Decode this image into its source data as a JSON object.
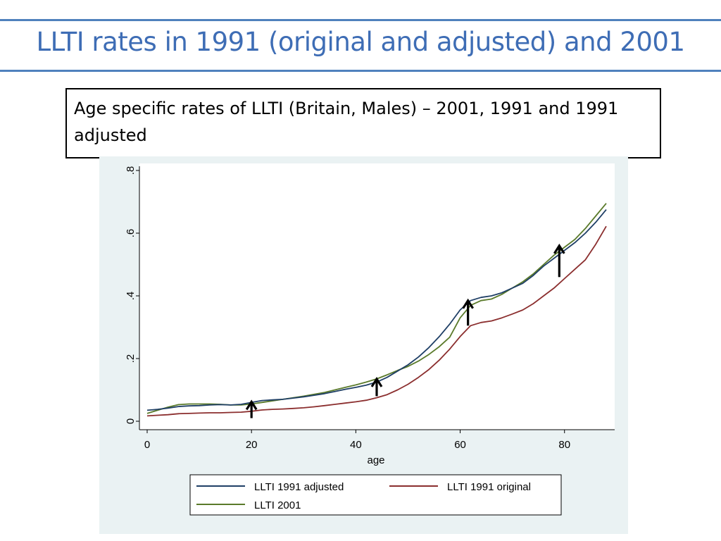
{
  "slide": {
    "title": "LLTI rates in 1991 (original and adjusted) and 2001",
    "caption": "Age specific rates of LLTI (Britain, Males) – 2001, 1991 and 1991 adjusted"
  },
  "colors": {
    "accent": "#4F81BD",
    "title": "#3E6DB5",
    "panel_bg": "#EAF2F3",
    "adjusted": "#1F3F66",
    "original": "#8B2E2E",
    "y2001": "#5A7A2A"
  },
  "chart_data": {
    "type": "line",
    "xlabel": "age",
    "ylabel": "",
    "xlim": [
      0,
      90
    ],
    "ylim": [
      0,
      0.8
    ],
    "xticks": [
      0,
      20,
      40,
      60,
      80
    ],
    "xtick_labels": [
      "0",
      "20",
      "40",
      "60",
      "80"
    ],
    "yticks": [
      0,
      0.2,
      0.4,
      0.6,
      0.8
    ],
    "ytick_labels": [
      "0",
      ".2",
      ".4",
      ".6",
      ".8"
    ],
    "grid": false,
    "legend_position": "bottom",
    "x": [
      0,
      2,
      4,
      6,
      8,
      10,
      12,
      14,
      16,
      18,
      20,
      22,
      24,
      26,
      28,
      30,
      32,
      34,
      36,
      38,
      40,
      42,
      44,
      46,
      48,
      50,
      52,
      54,
      56,
      58,
      60,
      62,
      64,
      66,
      68,
      70,
      72,
      74,
      76,
      78,
      80,
      82,
      84,
      86,
      88
    ],
    "series": [
      {
        "name": "LLTI 1991 adjusted",
        "color": "#1F3F66",
        "values": [
          0.035,
          0.038,
          0.042,
          0.047,
          0.049,
          0.05,
          0.052,
          0.053,
          0.052,
          0.054,
          0.06,
          0.066,
          0.068,
          0.07,
          0.074,
          0.078,
          0.083,
          0.088,
          0.095,
          0.102,
          0.108,
          0.115,
          0.125,
          0.14,
          0.16,
          0.18,
          0.205,
          0.235,
          0.27,
          0.31,
          0.355,
          0.385,
          0.395,
          0.4,
          0.41,
          0.425,
          0.44,
          0.465,
          0.495,
          0.52,
          0.545,
          0.57,
          0.6,
          0.635,
          0.675
        ]
      },
      {
        "name": "LLTI 1991 original",
        "color": "#8B2E2E",
        "values": [
          0.017,
          0.019,
          0.021,
          0.024,
          0.025,
          0.026,
          0.027,
          0.027,
          0.028,
          0.029,
          0.032,
          0.036,
          0.038,
          0.039,
          0.041,
          0.043,
          0.046,
          0.05,
          0.054,
          0.058,
          0.062,
          0.067,
          0.075,
          0.085,
          0.1,
          0.118,
          0.14,
          0.165,
          0.195,
          0.23,
          0.27,
          0.305,
          0.315,
          0.32,
          0.33,
          0.342,
          0.355,
          0.375,
          0.4,
          0.425,
          0.455,
          0.485,
          0.515,
          0.565,
          0.622
        ]
      },
      {
        "name": "LLTI 2001",
        "color": "#5A7A2A",
        "values": [
          0.025,
          0.035,
          0.045,
          0.053,
          0.055,
          0.055,
          0.055,
          0.054,
          0.052,
          0.052,
          0.055,
          0.06,
          0.065,
          0.07,
          0.075,
          0.08,
          0.086,
          0.092,
          0.1,
          0.108,
          0.116,
          0.125,
          0.135,
          0.148,
          0.162,
          0.175,
          0.192,
          0.213,
          0.238,
          0.268,
          0.33,
          0.37,
          0.385,
          0.39,
          0.405,
          0.425,
          0.445,
          0.47,
          0.5,
          0.53,
          0.555,
          0.58,
          0.615,
          0.655,
          0.695
        ]
      }
    ],
    "annotations": [
      {
        "type": "up-arrow",
        "x": 20,
        "y_from": 0.01,
        "y_to": 0.062
      },
      {
        "type": "up-arrow",
        "x": 44,
        "y_from": 0.08,
        "y_to": 0.135
      },
      {
        "type": "up-arrow",
        "x": 61.5,
        "y_from": 0.305,
        "y_to": 0.385
      },
      {
        "type": "up-arrow",
        "x": 79,
        "y_from": 0.46,
        "y_to": 0.56
      }
    ]
  }
}
